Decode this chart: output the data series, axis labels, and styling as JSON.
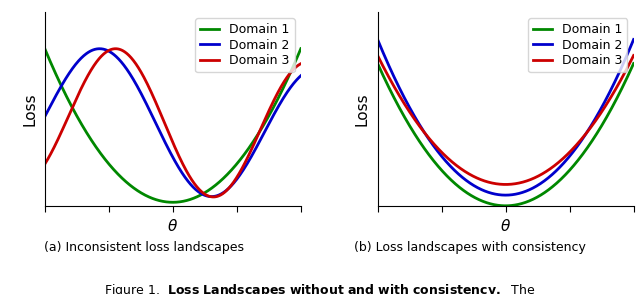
{
  "xlabel": "θ",
  "ylabel": "Loss",
  "domain_labels": [
    "Domain 1",
    "Domain 2",
    "Domain 3"
  ],
  "colors": [
    "#008800",
    "#0000cc",
    "#cc0000"
  ],
  "linewidth": 2.0,
  "caption_a": "(a) Inconsistent loss landscapes",
  "caption_b": "(b) Loss landscapes with consistency",
  "background_color": "#ffffff",
  "legend_fontsize": 9,
  "axis_label_fontsize": 11,
  "caption_fontsize": 9,
  "fig_caption": "Figure 1.  Loss Landscapes without and with consistency.  The"
}
